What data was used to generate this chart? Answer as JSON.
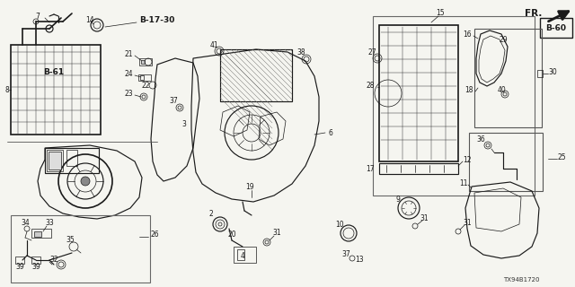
{
  "bg_color": "#f5f5f0",
  "diagram_code": "TX94B1720",
  "fr_label": "FR.",
  "b60_label": "B-60",
  "b61_label": "B-61",
  "b1730_label": "B-17-30",
  "text_color": "#1a1a1a",
  "line_color": "#1a1a1a",
  "gray_color": "#888888"
}
